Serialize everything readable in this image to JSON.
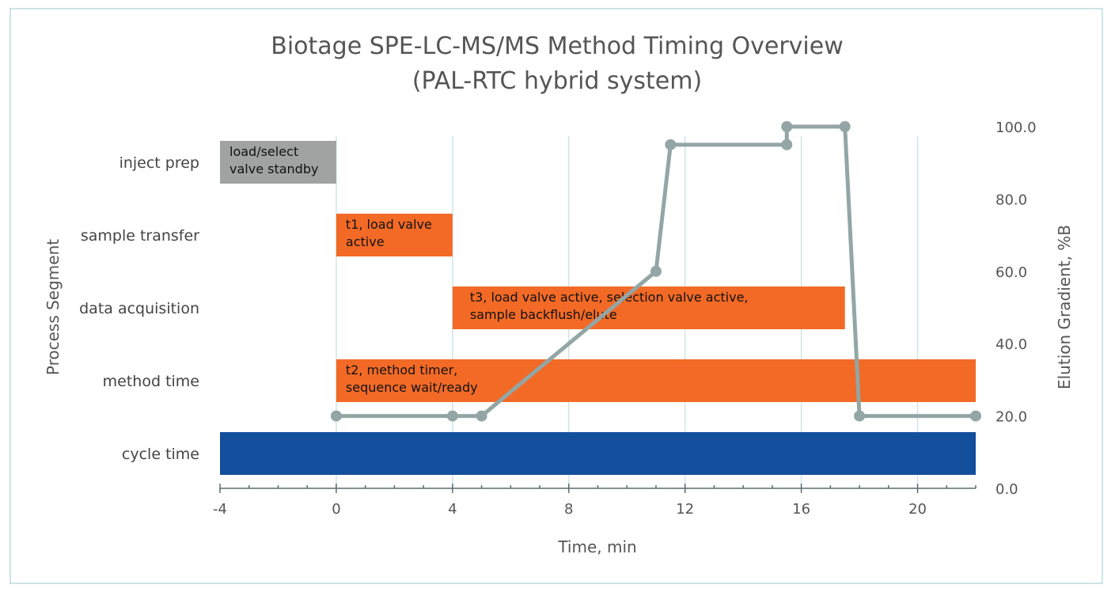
{
  "chart_data": {
    "type": "bar",
    "subtype": "gantt with secondary line",
    "title": [
      "Biotage SPE-LC-MS/MS Method Timing Overview",
      "(PAL-RTC hybrid system)"
    ],
    "xlabel": "Time, min",
    "ylabel": "Process Segment",
    "y2label": "Elution Gradient, %B",
    "xlim": [
      -4,
      22
    ],
    "xticks": [
      "-4",
      "0",
      "4",
      "8",
      "12",
      "16",
      "20"
    ],
    "y2lim": [
      0,
      100
    ],
    "y2ticks": [
      "0.0",
      "20.0",
      "40.0",
      "60.0",
      "80.0",
      "100.0"
    ],
    "grid": "vertical",
    "categories": [
      "inject prep",
      "sample transfer",
      "data acquisition",
      "method time",
      "cycle time"
    ],
    "bars": [
      {
        "category": "inject prep",
        "start": -4,
        "end": 0,
        "label": [
          "load/select",
          "valve standby"
        ],
        "color": "#9fa3a2"
      },
      {
        "category": "sample transfer",
        "start": 0,
        "end": 4,
        "label": [
          "t1, load valve",
          "active"
        ],
        "color": "#f26a26"
      },
      {
        "category": "data acquisition",
        "start": 4,
        "end": 17.5,
        "label": [
          "t3, load valve active, selection valve active,",
          "sample backflush/elute"
        ],
        "color": "#f26a26"
      },
      {
        "category": "method time",
        "start": 0,
        "end": 22,
        "label": [
          "t2, method timer,",
          "sequence wait/ready"
        ],
        "color": "#f26a26"
      },
      {
        "category": "cycle time",
        "start": -4,
        "end": 22,
        "label": [],
        "color": "#134f9c"
      }
    ],
    "series": [
      {
        "type": "line",
        "axis": "y2",
        "color": "#93a6a5",
        "x": [
          0,
          4,
          5,
          11,
          11.5,
          15.5,
          15.5,
          17.5,
          18,
          22
        ],
        "y": [
          20,
          20,
          20,
          60,
          95,
          95,
          100,
          100,
          20,
          20
        ]
      }
    ]
  }
}
